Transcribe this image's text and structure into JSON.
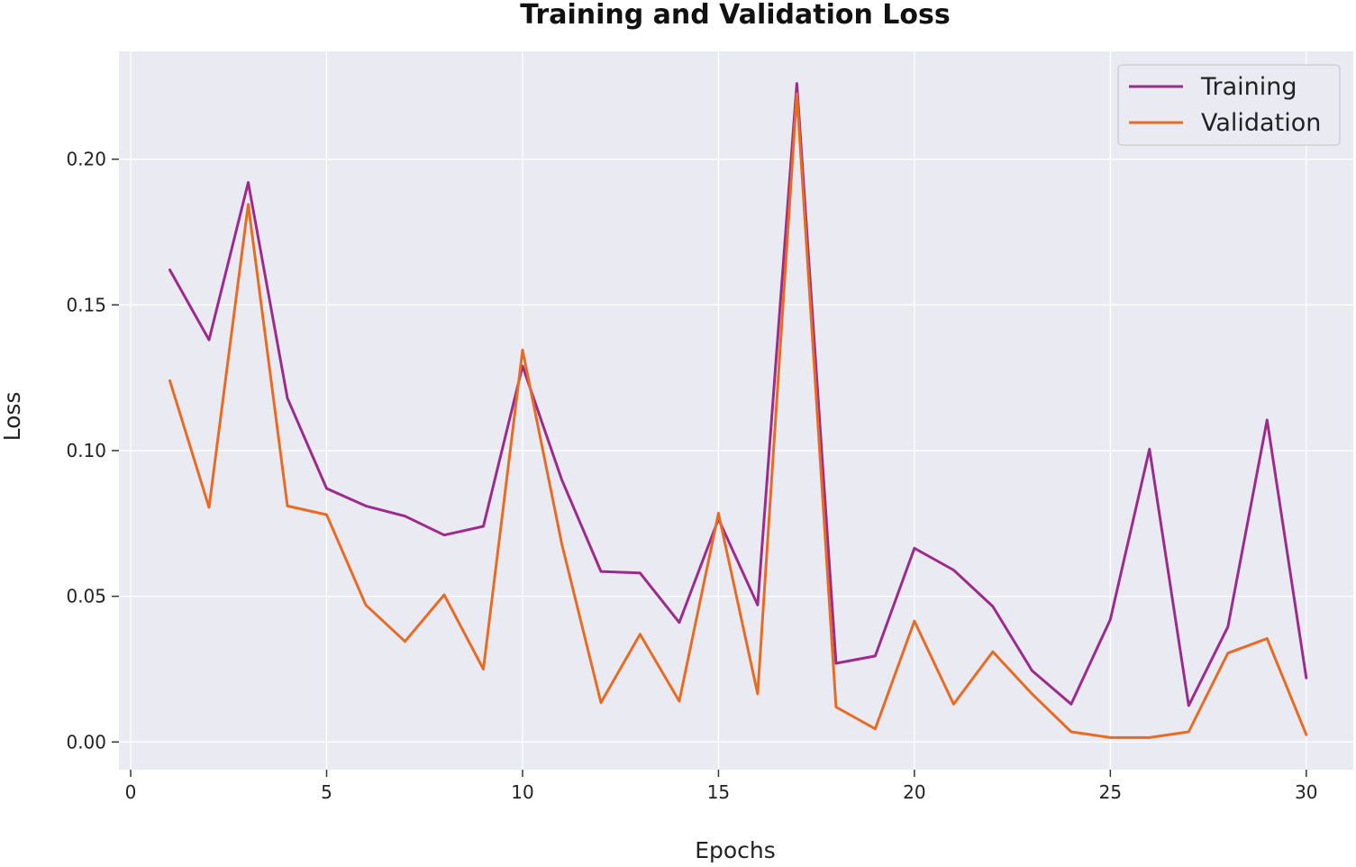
{
  "chart_data": {
    "type": "line",
    "title": "Training and Validation Loss",
    "xlabel": "Epochs",
    "ylabel": "Loss",
    "xlim": [
      -0.3,
      31.2
    ],
    "ylim": [
      -0.0095,
      0.237
    ],
    "xticks": [
      0,
      5,
      10,
      15,
      20,
      25,
      30
    ],
    "yticks": [
      0.0,
      0.05,
      0.1,
      0.15,
      0.2
    ],
    "xtick_labels": [
      "0",
      "5",
      "10",
      "15",
      "20",
      "25",
      "30"
    ],
    "ytick_labels": [
      "0.00",
      "0.05",
      "0.10",
      "0.15",
      "0.20"
    ],
    "legend_position": "top-right",
    "x": [
      1,
      2,
      3,
      4,
      5,
      6,
      7,
      8,
      9,
      10,
      11,
      12,
      13,
      14,
      15,
      16,
      17,
      18,
      19,
      20,
      21,
      22,
      23,
      24,
      25,
      26,
      27,
      28,
      29,
      30
    ],
    "series": [
      {
        "name": "Training",
        "color": "#9c2b8c",
        "values": [
          0.162,
          0.138,
          0.192,
          0.118,
          0.087,
          0.081,
          0.0775,
          0.071,
          0.074,
          0.129,
          0.09,
          0.0585,
          0.058,
          0.041,
          0.0765,
          0.047,
          0.226,
          0.027,
          0.0295,
          0.0665,
          0.059,
          0.0465,
          0.0245,
          0.013,
          0.042,
          0.1005,
          0.0125,
          0.0395,
          0.1105,
          0.022
        ]
      },
      {
        "name": "Validation",
        "color": "#e86b24",
        "values": [
          0.124,
          0.0805,
          0.1845,
          0.081,
          0.078,
          0.047,
          0.0345,
          0.0505,
          0.025,
          0.1345,
          0.068,
          0.0135,
          0.037,
          0.014,
          0.0785,
          0.0165,
          0.2225,
          0.012,
          0.0045,
          0.0415,
          0.013,
          0.031,
          0.0165,
          0.0035,
          0.0015,
          0.0015,
          0.0035,
          0.0305,
          0.0355,
          0.0025
        ]
      }
    ]
  },
  "colors": {
    "plot_background": "#eaeaf2",
    "grid": "#ffffff"
  }
}
